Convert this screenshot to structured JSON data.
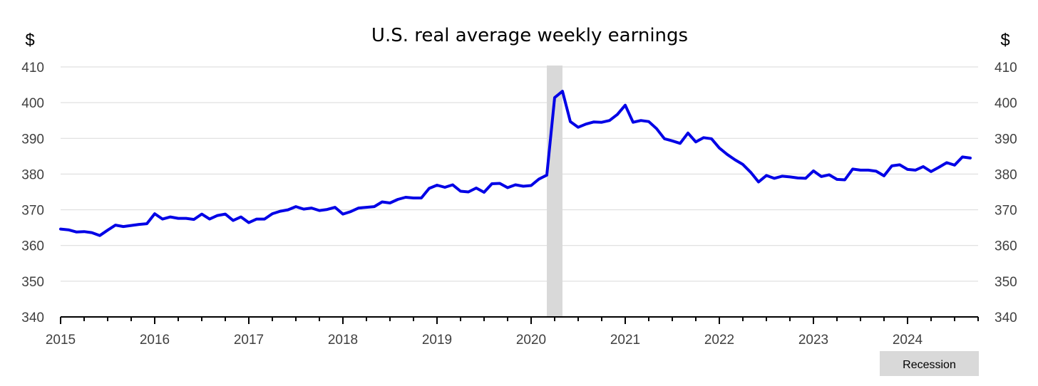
{
  "chart_data": {
    "type": "line",
    "title": "U.S. real average weekly earnings",
    "unit_label_left": "$",
    "unit_label_right": "$",
    "ylim": [
      340,
      410
    ],
    "y_ticks": [
      "340",
      "350",
      "360",
      "370",
      "380",
      "390",
      "400",
      "410"
    ],
    "x_range": [
      2015.0,
      2024.75
    ],
    "x_ticks": [
      "2015",
      "2016",
      "2017",
      "2018",
      "2019",
      "2020",
      "2021",
      "2022",
      "2023",
      "2024"
    ],
    "grid": "horizontal",
    "legend": {
      "label": "Recession",
      "position": "bottom-right"
    },
    "recession": {
      "start": 2020.167,
      "end": 2020.333
    },
    "colors": {
      "series": "#0000e6",
      "recession": "#d9d9d9"
    },
    "series": [
      {
        "start": "2015-01",
        "frequency": "monthly",
        "values": [
          364.6,
          364.4,
          363.8,
          363.9,
          363.6,
          362.8,
          364.3,
          365.7,
          365.3,
          365.6,
          365.9,
          366.1,
          368.9,
          367.4,
          368.0,
          367.6,
          367.6,
          367.3,
          368.8,
          367.4,
          368.4,
          368.8,
          367.0,
          368.0,
          366.4,
          367.4,
          367.4,
          368.9,
          369.6,
          370.0,
          370.9,
          370.2,
          370.5,
          369.8,
          370.1,
          370.7,
          368.8,
          369.5,
          370.5,
          370.7,
          370.9,
          372.2,
          371.9,
          372.9,
          373.5,
          373.3,
          373.3,
          376.0,
          376.9,
          376.3,
          377.0,
          375.2,
          375.0,
          376.1,
          374.9,
          377.3,
          377.4,
          376.2,
          377.0,
          376.6,
          376.8,
          378.6,
          379.7,
          401.4,
          403.2,
          394.7,
          393.1,
          394.0,
          394.6,
          394.5,
          395.0,
          396.7,
          399.3,
          394.5,
          395.0,
          394.7,
          392.7,
          389.9,
          389.3,
          388.6,
          391.5,
          389.0,
          390.2,
          389.9,
          387.3,
          385.5,
          384.0,
          382.7,
          380.5,
          377.8,
          379.6,
          378.8,
          379.4,
          379.2,
          378.9,
          378.8,
          380.9,
          379.3,
          379.8,
          378.5,
          378.4,
          381.4,
          381.1,
          381.1,
          380.8,
          379.5,
          382.3,
          382.6,
          381.3,
          381.1,
          382.1,
          380.7,
          381.9,
          383.2,
          382.5,
          384.8,
          384.5
        ]
      }
    ]
  }
}
